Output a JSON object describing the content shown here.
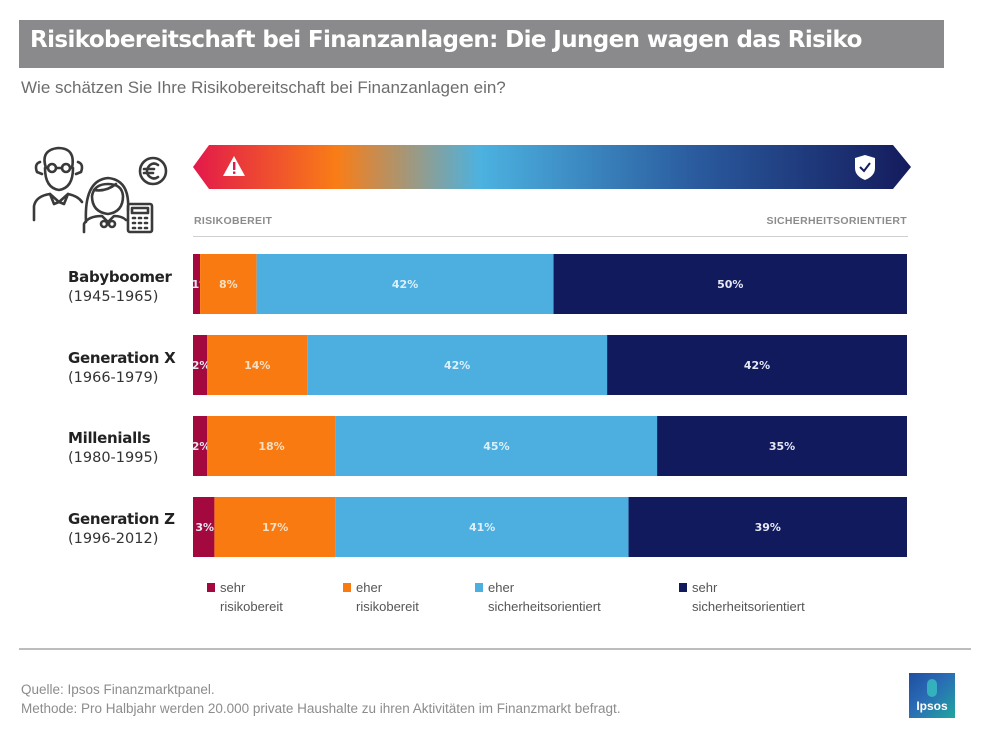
{
  "header": {
    "title": "Risikobereitschaft bei Finanzanlagen: Die Jungen wagen das Risiko",
    "subtitle": "Wie schätzen Sie Ihre Risikobereitschaft bei Finanzanlagen ein?"
  },
  "scale": {
    "left_label": "RISIKOBEREIT",
    "right_label": "SICHERHEITSORIENTIERT",
    "left_icon": "warning-triangle-icon",
    "right_icon": "shield-check-icon",
    "gradient_colors": [
      "#e3194b",
      "#f97d16",
      "#4cb2e0",
      "#2a5b9e",
      "#141b5c"
    ]
  },
  "illustration": {
    "icon": "elderly-man-woman-euro-calculator-icon"
  },
  "chart_data": {
    "type": "bar",
    "orientation": "horizontal",
    "stacked": true,
    "title": "Risikobereitschaft bei Finanzanlagen: Die Jungen wagen das Risiko",
    "subtitle": "Wie schätzen Sie Ihre Risikobereitschaft bei Finanzanlagen ein?",
    "xlabel": "",
    "ylabel": "",
    "xlim": [
      0,
      100
    ],
    "grid": false,
    "legend_position": "bottom",
    "categories": [
      {
        "name": "Babyboomer",
        "years": "(1945-1965)"
      },
      {
        "name": "Generation X",
        "years": "(1966-1979)"
      },
      {
        "name": "Millenialls",
        "years": "(1980-1995)"
      },
      {
        "name": "Generation Z",
        "years": "(1996-2012)"
      }
    ],
    "series": [
      {
        "name": "sehr risikobereit",
        "legend_lines": [
          "sehr",
          "risikobereit"
        ],
        "color": "#a3093f",
        "values": [
          1,
          2,
          2,
          3
        ]
      },
      {
        "name": "eher risikobereit",
        "legend_lines": [
          "eher",
          "risikobereit"
        ],
        "color": "#fa7a12",
        "values": [
          8,
          14,
          18,
          17
        ]
      },
      {
        "name": "eher sicherheitsorientiert",
        "legend_lines": [
          "eher",
          "sicherheitsorientiert"
        ],
        "color": "#4dafdf",
        "values": [
          42,
          42,
          45,
          41
        ]
      },
      {
        "name": "sehr sicherheitsorientiert",
        "legend_lines": [
          "sehr",
          "sicherheitsorientiert"
        ],
        "color": "#121a5e",
        "values": [
          50,
          42,
          35,
          39
        ]
      }
    ],
    "value_suffix": "%"
  },
  "footer": {
    "source": "Quelle: Ipsos Finanzmarktpanel.",
    "method": "Methode: Pro Halbjahr werden 20.000 private Haushalte zu ihren Aktivitäten im Finanzmarkt befragt.",
    "logo_text": "Ipsos"
  }
}
